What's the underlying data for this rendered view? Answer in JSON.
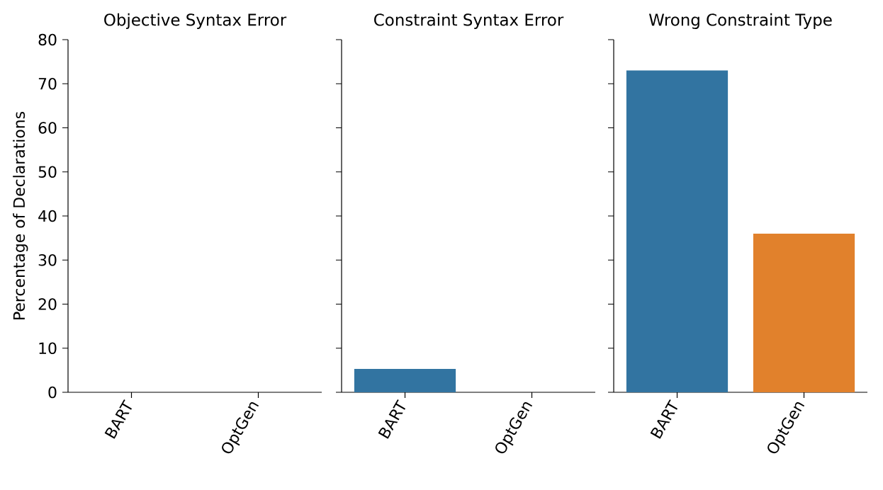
{
  "chart_data": [
    {
      "type": "bar",
      "title": "Objective Syntax Error",
      "ylabel": "Percentage of Declarations",
      "categories": [
        "BART",
        "OptGen"
      ],
      "values": [
        0,
        0
      ],
      "colors": [
        "#3274a1",
        "#e1812c"
      ],
      "ylim": [
        0,
        80
      ],
      "yticks": [
        0,
        10,
        20,
        30,
        40,
        50,
        60,
        70,
        80
      ]
    },
    {
      "type": "bar",
      "title": "Constraint Syntax Error",
      "categories": [
        "BART",
        "OptGen"
      ],
      "values": [
        5.3,
        0
      ],
      "colors": [
        "#3274a1",
        "#e1812c"
      ],
      "ylim": [
        0,
        80
      ],
      "yticks": [
        0,
        10,
        20,
        30,
        40,
        50,
        60,
        70,
        80
      ],
      "tick_labels": "x"
    },
    {
      "type": "bar",
      "title": "Wrong Constraint Type",
      "categories": [
        "BART",
        "OptGen"
      ],
      "values": [
        73,
        36
      ],
      "colors": [
        "#3274a1",
        "#e1812c"
      ],
      "ylim": [
        0,
        80
      ],
      "yticks": [
        0,
        10,
        20,
        30,
        40,
        50,
        60,
        70,
        80
      ],
      "tick_labels": "x"
    }
  ]
}
